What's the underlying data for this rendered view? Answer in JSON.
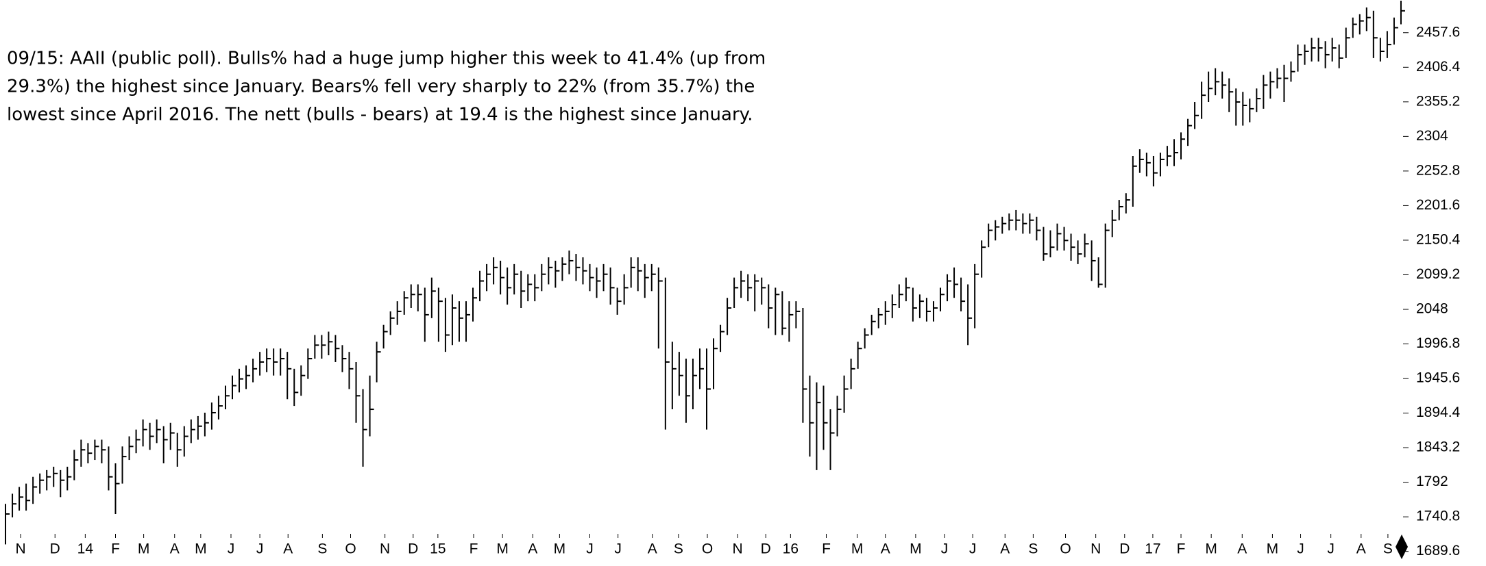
{
  "chart_data": {
    "type": "hlc",
    "annotation": [
      "09/15: AAII (public poll). Bulls% had a huge jump higher this week to 41.4% (up from",
      "29.3%) the highest since January. Bears% fell very sharply to 22% (from 35.7%) the",
      "lowest since April 2016. The nett (bulls - bears) at 19.4 is the highest since January."
    ],
    "color": "#000000",
    "ylim": [
      1668,
      2506
    ],
    "yticks": [
      1689.6,
      1740.8,
      1792,
      1843.2,
      1894.4,
      1945.6,
      1996.8,
      2048,
      2099.2,
      2150.4,
      2201.6,
      2252.8,
      2304,
      2355.2,
      2406.4,
      2457.6
    ],
    "xlim": [
      -0.8,
      204.6
    ],
    "xticks": [
      {
        "value": 2.2,
        "label": "N"
      },
      {
        "value": 7.2,
        "label": "D"
      },
      {
        "value": 11.6,
        "label": "14"
      },
      {
        "value": 16,
        "label": "F"
      },
      {
        "value": 20.1,
        "label": "M"
      },
      {
        "value": 24.6,
        "label": "A"
      },
      {
        "value": 28.4,
        "label": "M"
      },
      {
        "value": 32.8,
        "label": "J"
      },
      {
        "value": 37,
        "label": "J"
      },
      {
        "value": 41.1,
        "label": "A"
      },
      {
        "value": 46.1,
        "label": "S"
      },
      {
        "value": 50.2,
        "label": "O"
      },
      {
        "value": 55.2,
        "label": "N"
      },
      {
        "value": 59.3,
        "label": "D"
      },
      {
        "value": 62.9,
        "label": "15"
      },
      {
        "value": 68.1,
        "label": "F"
      },
      {
        "value": 72.3,
        "label": "M"
      },
      {
        "value": 76.7,
        "label": "A"
      },
      {
        "value": 80.6,
        "label": "M"
      },
      {
        "value": 85,
        "label": "J"
      },
      {
        "value": 89.1,
        "label": "J"
      },
      {
        "value": 94.1,
        "label": "A"
      },
      {
        "value": 97.9,
        "label": "S"
      },
      {
        "value": 102.1,
        "label": "O"
      },
      {
        "value": 106.5,
        "label": "N"
      },
      {
        "value": 110.6,
        "label": "D"
      },
      {
        "value": 114.2,
        "label": "16"
      },
      {
        "value": 119.4,
        "label": "F"
      },
      {
        "value": 123.9,
        "label": "M"
      },
      {
        "value": 128,
        "label": "A"
      },
      {
        "value": 132.4,
        "label": "M"
      },
      {
        "value": 136.6,
        "label": "J"
      },
      {
        "value": 140.7,
        "label": "J"
      },
      {
        "value": 145.4,
        "label": "A"
      },
      {
        "value": 149.5,
        "label": "S"
      },
      {
        "value": 154.2,
        "label": "O"
      },
      {
        "value": 158.6,
        "label": "N"
      },
      {
        "value": 162.8,
        "label": "D"
      },
      {
        "value": 166.9,
        "label": "17"
      },
      {
        "value": 171,
        "label": "F"
      },
      {
        "value": 175.4,
        "label": "M"
      },
      {
        "value": 179.9,
        "label": "A"
      },
      {
        "value": 184.3,
        "label": "M"
      },
      {
        "value": 188.4,
        "label": "J"
      },
      {
        "value": 192.8,
        "label": "J"
      },
      {
        "value": 197.2,
        "label": "A"
      },
      {
        "value": 201.1,
        "label": "S"
      }
    ],
    "close": [
      1745,
      1760,
      1770,
      1765,
      1785,
      1795,
      1800,
      1805,
      1795,
      1800,
      1825,
      1840,
      1835,
      1845,
      1840,
      1800,
      1790,
      1830,
      1845,
      1855,
      1870,
      1860,
      1870,
      1855,
      1865,
      1840,
      1860,
      1870,
      1875,
      1880,
      1895,
      1905,
      1920,
      1935,
      1945,
      1950,
      1960,
      1970,
      1975,
      1970,
      1975,
      1960,
      1925,
      1950,
      1975,
      1995,
      1995,
      2000,
      1990,
      1975,
      1960,
      1920,
      1870,
      1900,
      1985,
      2015,
      2035,
      2045,
      2065,
      2070,
      2070,
      2040,
      2075,
      2060,
      2010,
      2050,
      2035,
      2040,
      2065,
      2090,
      2100,
      2110,
      2095,
      2080,
      2100,
      2075,
      2085,
      2080,
      2100,
      2110,
      2105,
      2115,
      2120,
      2110,
      2105,
      2095,
      2090,
      2100,
      2080,
      2060,
      2080,
      2110,
      2105,
      2095,
      2100,
      2090,
      1970,
      1960,
      1950,
      1920,
      1950,
      1960,
      1930,
      1990,
      2015,
      2050,
      2080,
      2090,
      2080,
      2090,
      2080,
      2050,
      2070,
      2020,
      2040,
      2045,
      1930,
      1880,
      1910,
      1880,
      1865,
      1900,
      1930,
      1960,
      1990,
      2010,
      2030,
      2040,
      2045,
      2055,
      2070,
      2080,
      2050,
      2060,
      2045,
      2050,
      2070,
      2090,
      2085,
      2060,
      2035,
      2100,
      2140,
      2165,
      2170,
      2175,
      2180,
      2180,
      2175,
      2180,
      2165,
      2130,
      2140,
      2160,
      2150,
      2140,
      2130,
      2145,
      2120,
      2085,
      2165,
      2180,
      2200,
      2210,
      2260,
      2270,
      2265,
      2250,
      2270,
      2275,
      2280,
      2300,
      2320,
      2335,
      2365,
      2375,
      2385,
      2380,
      2370,
      2355,
      2350,
      2345,
      2360,
      2380,
      2385,
      2390,
      2390,
      2400,
      2425,
      2430,
      2435,
      2435,
      2425,
      2435,
      2420,
      2450,
      2470,
      2475,
      2480,
      2450,
      2430,
      2440,
      2465,
      2490
    ],
    "high": [
      1760,
      1775,
      1785,
      1790,
      1800,
      1805,
      1810,
      1815,
      1810,
      1815,
      1840,
      1855,
      1850,
      1855,
      1855,
      1845,
      1820,
      1845,
      1860,
      1870,
      1885,
      1880,
      1885,
      1875,
      1880,
      1865,
      1875,
      1885,
      1890,
      1895,
      1910,
      1920,
      1935,
      1950,
      1960,
      1965,
      1975,
      1985,
      1990,
      1990,
      1990,
      1985,
      1960,
      1965,
      1990,
      2010,
      2010,
      2015,
      2010,
      1995,
      1985,
      1970,
      1930,
      1950,
      2000,
      2025,
      2045,
      2060,
      2075,
      2085,
      2085,
      2080,
      2095,
      2080,
      2065,
      2070,
      2060,
      2060,
      2080,
      2105,
      2115,
      2125,
      2120,
      2110,
      2115,
      2105,
      2100,
      2100,
      2115,
      2125,
      2120,
      2125,
      2135,
      2130,
      2125,
      2115,
      2110,
      2115,
      2110,
      2080,
      2100,
      2125,
      2125,
      2115,
      2115,
      2110,
      2095,
      2000,
      1985,
      1975,
      1975,
      1990,
      1990,
      2005,
      2025,
      2065,
      2095,
      2105,
      2100,
      2100,
      2095,
      2085,
      2080,
      2075,
      2060,
      2060,
      2050,
      1950,
      1940,
      1935,
      1900,
      1920,
      1950,
      1975,
      2000,
      2020,
      2040,
      2050,
      2060,
      2070,
      2085,
      2095,
      2080,
      2070,
      2065,
      2060,
      2080,
      2100,
      2110,
      2095,
      2085,
      2115,
      2150,
      2175,
      2180,
      2185,
      2190,
      2195,
      2190,
      2190,
      2185,
      2170,
      2165,
      2175,
      2170,
      2160,
      2150,
      2160,
      2150,
      2125,
      2175,
      2195,
      2210,
      2220,
      2275,
      2285,
      2280,
      2275,
      2280,
      2290,
      2300,
      2310,
      2330,
      2355,
      2385,
      2400,
      2405,
      2400,
      2390,
      2375,
      2370,
      2360,
      2375,
      2395,
      2400,
      2405,
      2410,
      2415,
      2440,
      2440,
      2450,
      2450,
      2445,
      2450,
      2440,
      2465,
      2480,
      2485,
      2495,
      2490,
      2450,
      2460,
      2480,
      2505
    ],
    "low": [
      1700,
      1740,
      1750,
      1750,
      1760,
      1775,
      1780,
      1785,
      1770,
      1780,
      1795,
      1815,
      1820,
      1825,
      1820,
      1780,
      1745,
      1790,
      1825,
      1835,
      1845,
      1840,
      1850,
      1820,
      1840,
      1815,
      1830,
      1850,
      1855,
      1860,
      1870,
      1885,
      1900,
      1915,
      1925,
      1930,
      1940,
      1950,
      1955,
      1950,
      1950,
      1915,
      1905,
      1920,
      1945,
      1975,
      1975,
      1980,
      1970,
      1955,
      1930,
      1880,
      1815,
      1860,
      1940,
      1990,
      2010,
      2025,
      2040,
      2050,
      2045,
      2000,
      2035,
      2000,
      1985,
      1995,
      2000,
      2000,
      2030,
      2060,
      2075,
      2085,
      2070,
      2055,
      2070,
      2050,
      2060,
      2060,
      2075,
      2085,
      2080,
      2090,
      2100,
      2090,
      2085,
      2075,
      2065,
      2075,
      2055,
      2040,
      2055,
      2080,
      2075,
      2065,
      2075,
      1990,
      1870,
      1900,
      1920,
      1880,
      1900,
      1930,
      1870,
      1930,
      1985,
      2010,
      2050,
      2065,
      2060,
      2045,
      2055,
      2020,
      2010,
      2010,
      2000,
      2020,
      1880,
      1830,
      1810,
      1840,
      1810,
      1860,
      1895,
      1930,
      1960,
      1990,
      2010,
      2020,
      2025,
      2035,
      2050,
      2060,
      2030,
      2035,
      2030,
      2030,
      2045,
      2060,
      2065,
      2045,
      1995,
      2020,
      2095,
      2140,
      2150,
      2160,
      2165,
      2165,
      2160,
      2160,
      2150,
      2120,
      2125,
      2135,
      2135,
      2120,
      2115,
      2125,
      2090,
      2080,
      2080,
      2155,
      2180,
      2190,
      2200,
      2250,
      2245,
      2230,
      2245,
      2260,
      2260,
      2270,
      2290,
      2315,
      2330,
      2355,
      2365,
      2360,
      2340,
      2320,
      2320,
      2325,
      2340,
      2345,
      2360,
      2375,
      2355,
      2385,
      2400,
      2410,
      2415,
      2415,
      2405,
      2415,
      2405,
      2420,
      2450,
      2455,
      2460,
      2420,
      2415,
      2420,
      2440,
      2470
    ]
  }
}
